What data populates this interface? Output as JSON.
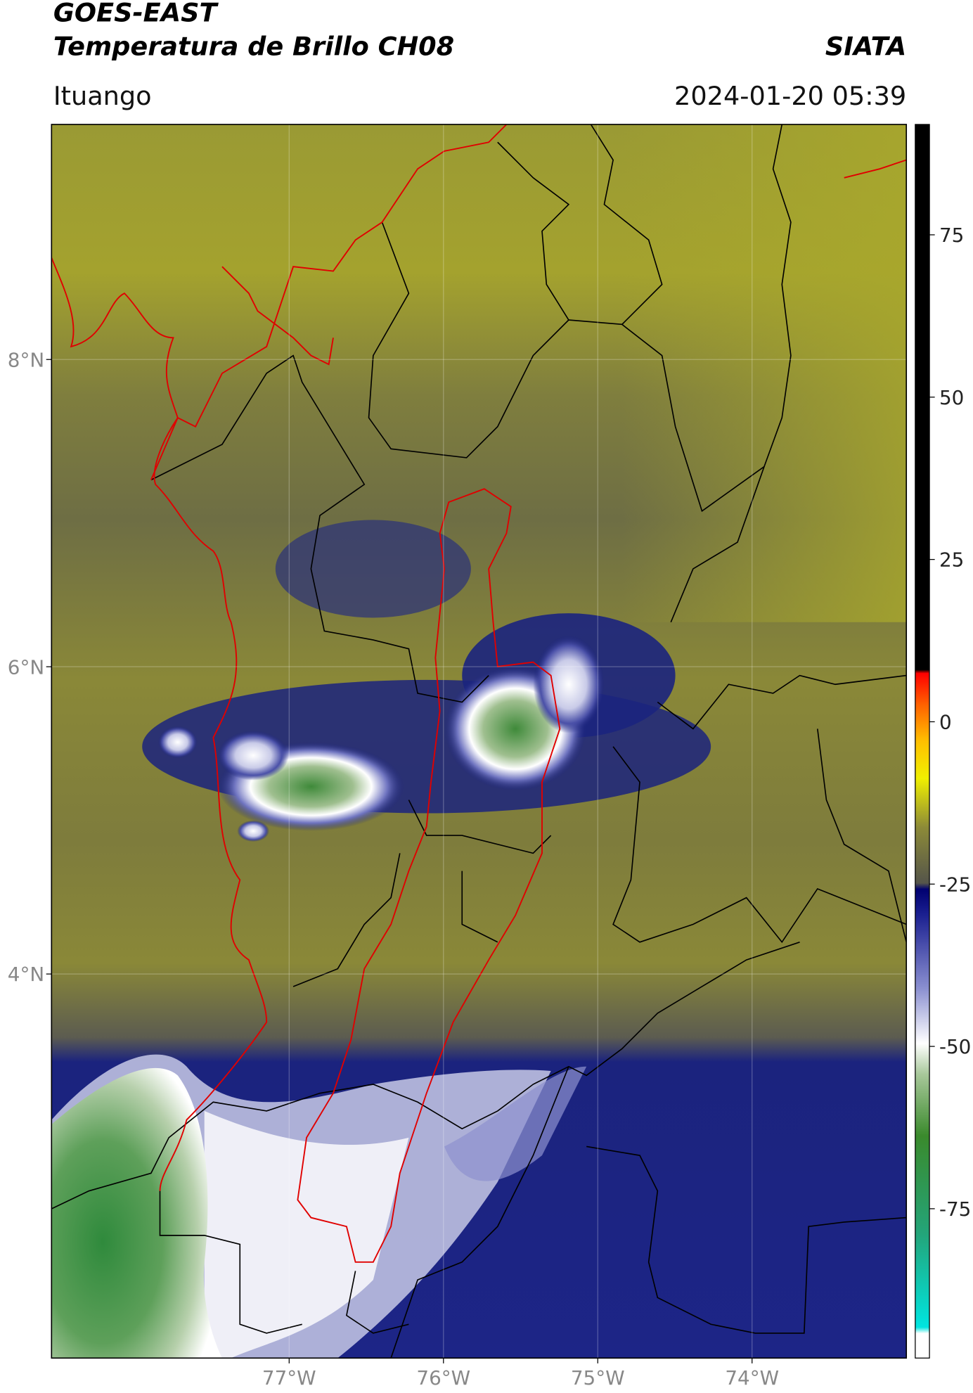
{
  "header": {
    "title": "GOES-EAST",
    "subtitle": "Temperatura de Brillo CH08",
    "source": "SIATA",
    "location": "Ituango",
    "datetime": "2024-01-20 05:39"
  },
  "map": {
    "lat_range": [
      1.5,
      9.53
    ],
    "lon_range": [
      -78.54,
      -73.0
    ],
    "lat_ticks": [
      {
        "value": 8,
        "label": "8°N"
      },
      {
        "value": 6,
        "label": "6°N"
      },
      {
        "value": 4,
        "label": "4°N"
      }
    ],
    "lon_ticks": [
      {
        "value": -77,
        "label": "77°W"
      },
      {
        "value": -76,
        "label": "76°W"
      },
      {
        "value": -75,
        "label": "75°W"
      },
      {
        "value": -74,
        "label": "74°W"
      }
    ],
    "grid": true
  },
  "colorbar": {
    "lim": [
      -98,
      92
    ],
    "ticks": [
      75,
      50,
      25,
      0,
      -25,
      -50,
      -75
    ]
  }
}
